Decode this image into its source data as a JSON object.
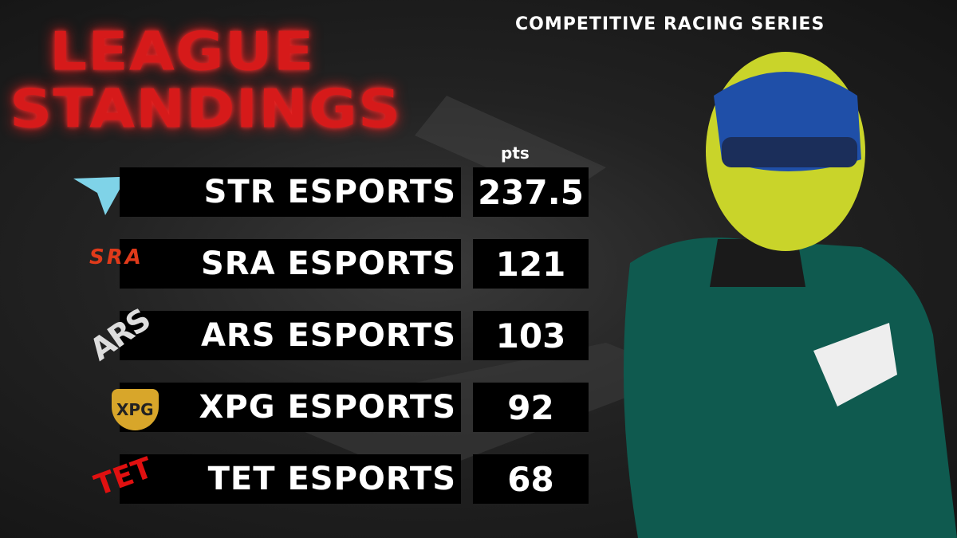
{
  "header": {
    "title_lines": [
      "LEAGUE",
      "STANDINGS"
    ],
    "subtitle": "COMPETITIVE RACING SERIES"
  },
  "table": {
    "points_header": "pts",
    "rows": [
      {
        "team": "STR ESPORTS",
        "points": 237.5
      },
      {
        "team": "SRA ESPORTS",
        "points": 121,
        "logo": "SRA"
      },
      {
        "team": "ARS ESPORTS",
        "points": 103,
        "logo": "ARS"
      },
      {
        "team": "XPG ESPORTS",
        "points": 92,
        "logo": "XPG"
      },
      {
        "team": "TET ESPORTS",
        "points": 68,
        "logo": "TET"
      }
    ]
  }
}
